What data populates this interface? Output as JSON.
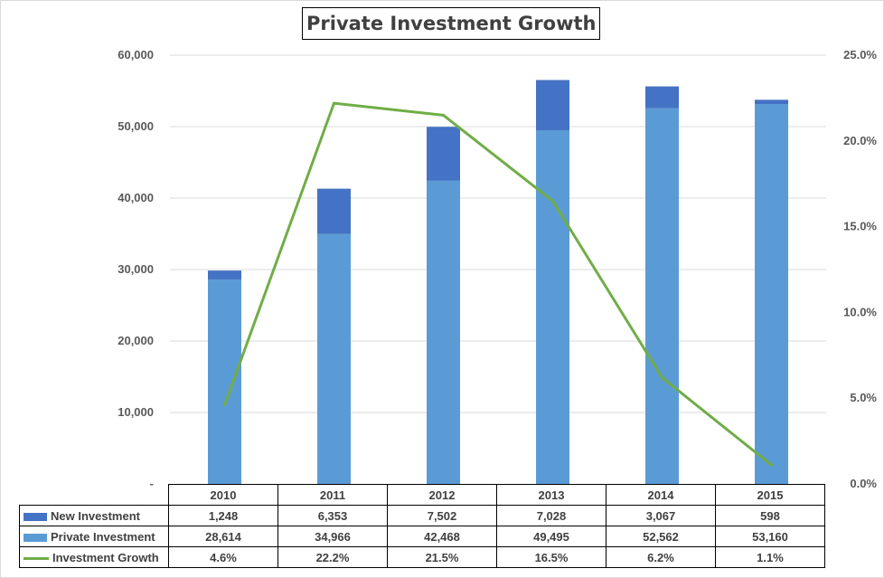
{
  "chart_data": {
    "type": "bar",
    "title": "Private Investment Growth",
    "categories": [
      "2010",
      "2011",
      "2012",
      "2013",
      "2014",
      "2015"
    ],
    "series": [
      {
        "name": "New Investment",
        "kind": "stacked-bar",
        "axis": "left",
        "color": "#4472C4",
        "values": [
          1248,
          6353,
          7502,
          7028,
          3067,
          598
        ],
        "labels": [
          "1,248",
          "6,353",
          "7,502",
          "7,028",
          "3,067",
          "598"
        ]
      },
      {
        "name": "Private Investment",
        "kind": "stacked-bar",
        "axis": "left",
        "color": "#5B9BD5",
        "values": [
          28614,
          34966,
          42468,
          49495,
          52562,
          53160
        ],
        "labels": [
          "28,614",
          "34,966",
          "42,468",
          "49,495",
          "52,562",
          "53,160"
        ]
      },
      {
        "name": "Investment Growth",
        "kind": "line",
        "axis": "right",
        "color": "#70AD47",
        "values": [
          4.6,
          22.2,
          21.5,
          16.5,
          6.2,
          1.1
        ],
        "labels": [
          "4.6%",
          "22.2%",
          "21.5%",
          "16.5%",
          "6.2%",
          "1.1%"
        ]
      }
    ],
    "stack_order": [
      "Private Investment",
      "New Investment"
    ],
    "y_left": {
      "ylim": [
        0,
        60000
      ],
      "tick_labels": [
        "-",
        "10,000",
        "20,000",
        "30,000",
        "40,000",
        "50,000",
        "60,000"
      ]
    },
    "y_right": {
      "ylim": [
        0,
        25
      ],
      "tick_labels": [
        "0.0%",
        "5.0%",
        "10.0%",
        "15.0%",
        "20.0%",
        "25.0%"
      ]
    },
    "grid": true,
    "data_table": true
  }
}
